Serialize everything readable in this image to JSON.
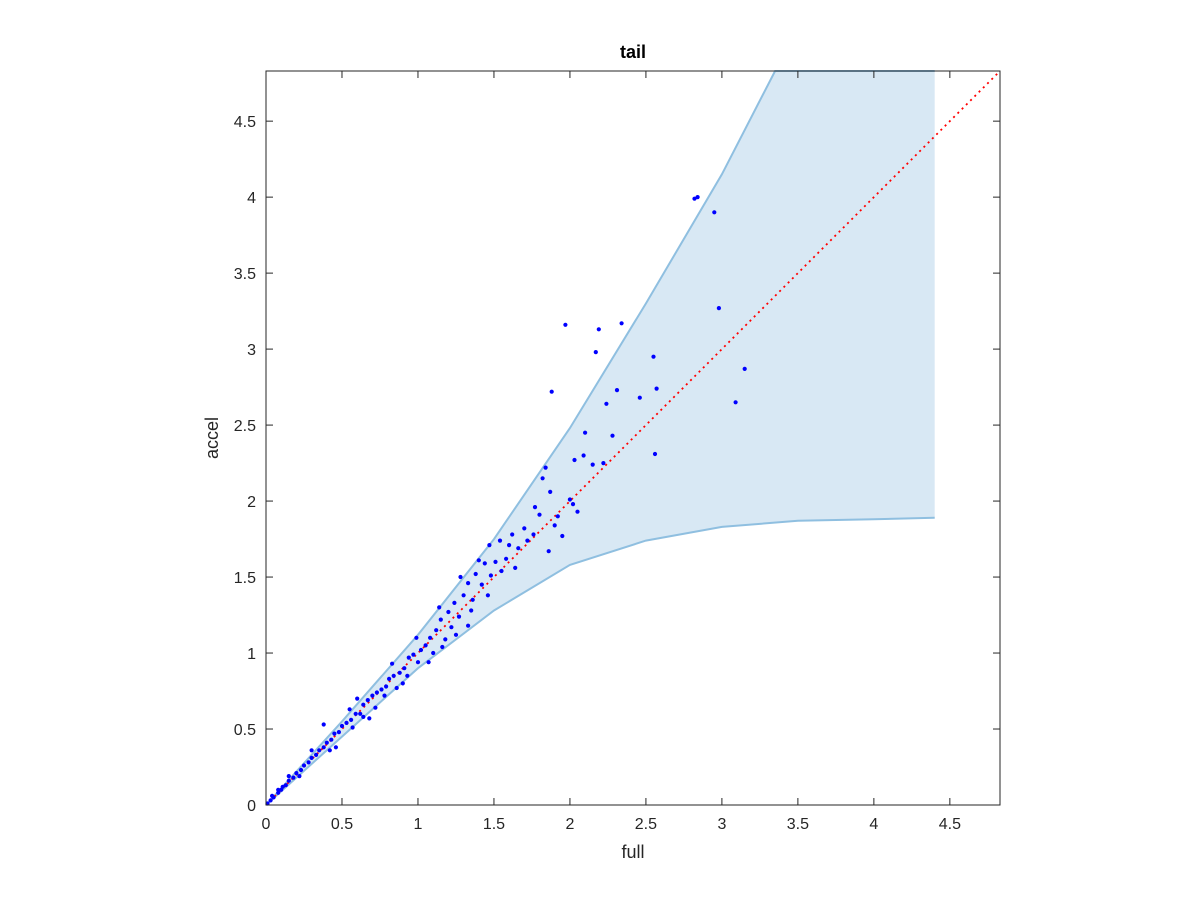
{
  "chart_data": {
    "type": "scatter",
    "title": "tail",
    "xlabel": "full",
    "ylabel": "accel",
    "xlim": [
      0,
      4.83
    ],
    "ylim": [
      0,
      4.83
    ],
    "xticks": [
      "0",
      "0.5",
      "1",
      "1.5",
      "2",
      "2.5",
      "3",
      "3.5",
      "4",
      "4.5"
    ],
    "yticks": [
      "0",
      "0.5",
      "1",
      "1.5",
      "2",
      "2.5",
      "3",
      "3.5",
      "4",
      "4.5"
    ],
    "grid": false,
    "colors": {
      "points": "#0000ff",
      "band_fill": "#d8e8f4",
      "band_edge": "#8fbfe0",
      "reference_line": "#ff0000",
      "axes": "#262626"
    },
    "band": {
      "upper": [
        [
          0,
          0
        ],
        [
          0.5,
          0.55
        ],
        [
          1,
          1.12
        ],
        [
          1.5,
          1.75
        ],
        [
          2,
          2.48
        ],
        [
          2.5,
          3.3
        ],
        [
          3,
          4.15
        ],
        [
          3.35,
          4.83
        ],
        [
          4.4,
          4.83
        ]
      ],
      "lower": [
        [
          0,
          0
        ],
        [
          0.5,
          0.45
        ],
        [
          1,
          0.9
        ],
        [
          1.5,
          1.28
        ],
        [
          2,
          1.58
        ],
        [
          2.5,
          1.74
        ],
        [
          3,
          1.83
        ],
        [
          3.5,
          1.87
        ],
        [
          4,
          1.88
        ],
        [
          4.4,
          1.89
        ]
      ]
    },
    "reference_line": [
      [
        0,
        0
      ],
      [
        4.83,
        4.83
      ]
    ],
    "points": [
      [
        2.82,
        3.99
      ],
      [
        2.84,
        4.0
      ],
      [
        2.95,
        3.9
      ],
      [
        2.98,
        3.27
      ],
      [
        1.97,
        3.16
      ],
      [
        2.19,
        3.13
      ],
      [
        2.34,
        3.17
      ],
      [
        2.17,
        2.98
      ],
      [
        2.55,
        2.95
      ],
      [
        3.15,
        2.87
      ],
      [
        1.88,
        2.72
      ],
      [
        2.31,
        2.73
      ],
      [
        2.57,
        2.74
      ],
      [
        2.24,
        2.64
      ],
      [
        2.46,
        2.68
      ],
      [
        3.09,
        2.65
      ],
      [
        2.1,
        2.45
      ],
      [
        2.28,
        2.43
      ],
      [
        2.56,
        2.31
      ],
      [
        2.03,
        2.27
      ],
      [
        2.09,
        2.3
      ],
      [
        2.15,
        2.24
      ],
      [
        2.22,
        2.25
      ],
      [
        1.84,
        2.22
      ],
      [
        1.82,
        2.15
      ],
      [
        1.87,
        2.06
      ],
      [
        2.0,
        2.01
      ],
      [
        2.02,
        1.98
      ],
      [
        1.77,
        1.96
      ],
      [
        1.8,
        1.91
      ],
      [
        1.92,
        1.9
      ],
      [
        2.05,
        1.93
      ],
      [
        1.9,
        1.84
      ],
      [
        1.7,
        1.82
      ],
      [
        1.76,
        1.78
      ],
      [
        1.62,
        1.78
      ],
      [
        1.66,
        1.69
      ],
      [
        1.86,
        1.67
      ],
      [
        1.6,
        1.71
      ],
      [
        1.72,
        1.74
      ],
      [
        1.54,
        1.74
      ],
      [
        1.47,
        1.71
      ],
      [
        1.95,
        1.77
      ],
      [
        1.4,
        1.61
      ],
      [
        1.44,
        1.59
      ],
      [
        1.51,
        1.6
      ],
      [
        1.58,
        1.62
      ],
      [
        1.64,
        1.56
      ],
      [
        1.38,
        1.52
      ],
      [
        1.55,
        1.54
      ],
      [
        1.48,
        1.51
      ],
      [
        1.42,
        1.45
      ],
      [
        1.33,
        1.46
      ],
      [
        1.28,
        1.5
      ],
      [
        1.3,
        1.38
      ],
      [
        1.46,
        1.38
      ],
      [
        1.36,
        1.35
      ],
      [
        1.24,
        1.33
      ],
      [
        1.2,
        1.27
      ],
      [
        1.27,
        1.24
      ],
      [
        1.15,
        1.22
      ],
      [
        1.22,
        1.17
      ],
      [
        1.33,
        1.18
      ],
      [
        1.12,
        1.15
      ],
      [
        1.08,
        1.1
      ],
      [
        1.18,
        1.09
      ],
      [
        1.05,
        1.05
      ],
      [
        1.02,
        1.02
      ],
      [
        0.97,
        0.99
      ],
      [
        1.0,
        0.94
      ],
      [
        0.94,
        0.97
      ],
      [
        0.91,
        0.9
      ],
      [
        0.88,
        0.87
      ],
      [
        0.84,
        0.85
      ],
      [
        0.81,
        0.83
      ],
      [
        0.79,
        0.78
      ],
      [
        0.76,
        0.76
      ],
      [
        0.73,
        0.74
      ],
      [
        0.7,
        0.72
      ],
      [
        0.67,
        0.69
      ],
      [
        0.64,
        0.66
      ],
      [
        0.62,
        0.6
      ],
      [
        0.59,
        0.6
      ],
      [
        0.56,
        0.56
      ],
      [
        0.53,
        0.54
      ],
      [
        0.5,
        0.52
      ],
      [
        0.48,
        0.48
      ],
      [
        0.45,
        0.47
      ],
      [
        0.43,
        0.43
      ],
      [
        0.4,
        0.41
      ],
      [
        0.38,
        0.38
      ],
      [
        0.35,
        0.36
      ],
      [
        0.33,
        0.33
      ],
      [
        0.3,
        0.31
      ],
      [
        0.28,
        0.28
      ],
      [
        0.25,
        0.26
      ],
      [
        0.23,
        0.23
      ],
      [
        0.2,
        0.21
      ],
      [
        0.18,
        0.18
      ],
      [
        0.15,
        0.16
      ],
      [
        0.13,
        0.13
      ],
      [
        0.1,
        0.1
      ],
      [
        0.08,
        0.08
      ],
      [
        0.05,
        0.05
      ],
      [
        0.03,
        0.03
      ],
      [
        0.01,
        0.01
      ],
      [
        0.38,
        0.53
      ],
      [
        0.46,
        0.38
      ],
      [
        0.68,
        0.57
      ],
      [
        0.9,
        0.8
      ],
      [
        1.07,
        0.94
      ],
      [
        0.83,
        0.93
      ],
      [
        0.6,
        0.7
      ],
      [
        0.72,
        0.64
      ],
      [
        0.55,
        0.63
      ],
      [
        0.86,
        0.77
      ],
      [
        1.16,
        1.04
      ],
      [
        0.99,
        1.1
      ],
      [
        1.25,
        1.12
      ],
      [
        0.42,
        0.36
      ],
      [
        0.3,
        0.36
      ],
      [
        0.22,
        0.19
      ],
      [
        0.15,
        0.19
      ],
      [
        0.11,
        0.12
      ],
      [
        0.57,
        0.51
      ],
      [
        0.64,
        0.58
      ],
      [
        0.78,
        0.72
      ],
      [
        0.93,
        0.85
      ],
      [
        1.1,
        1.0
      ],
      [
        1.14,
        1.3
      ],
      [
        1.35,
        1.28
      ],
      [
        0.08,
        0.1
      ],
      [
        0.04,
        0.06
      ]
    ]
  }
}
